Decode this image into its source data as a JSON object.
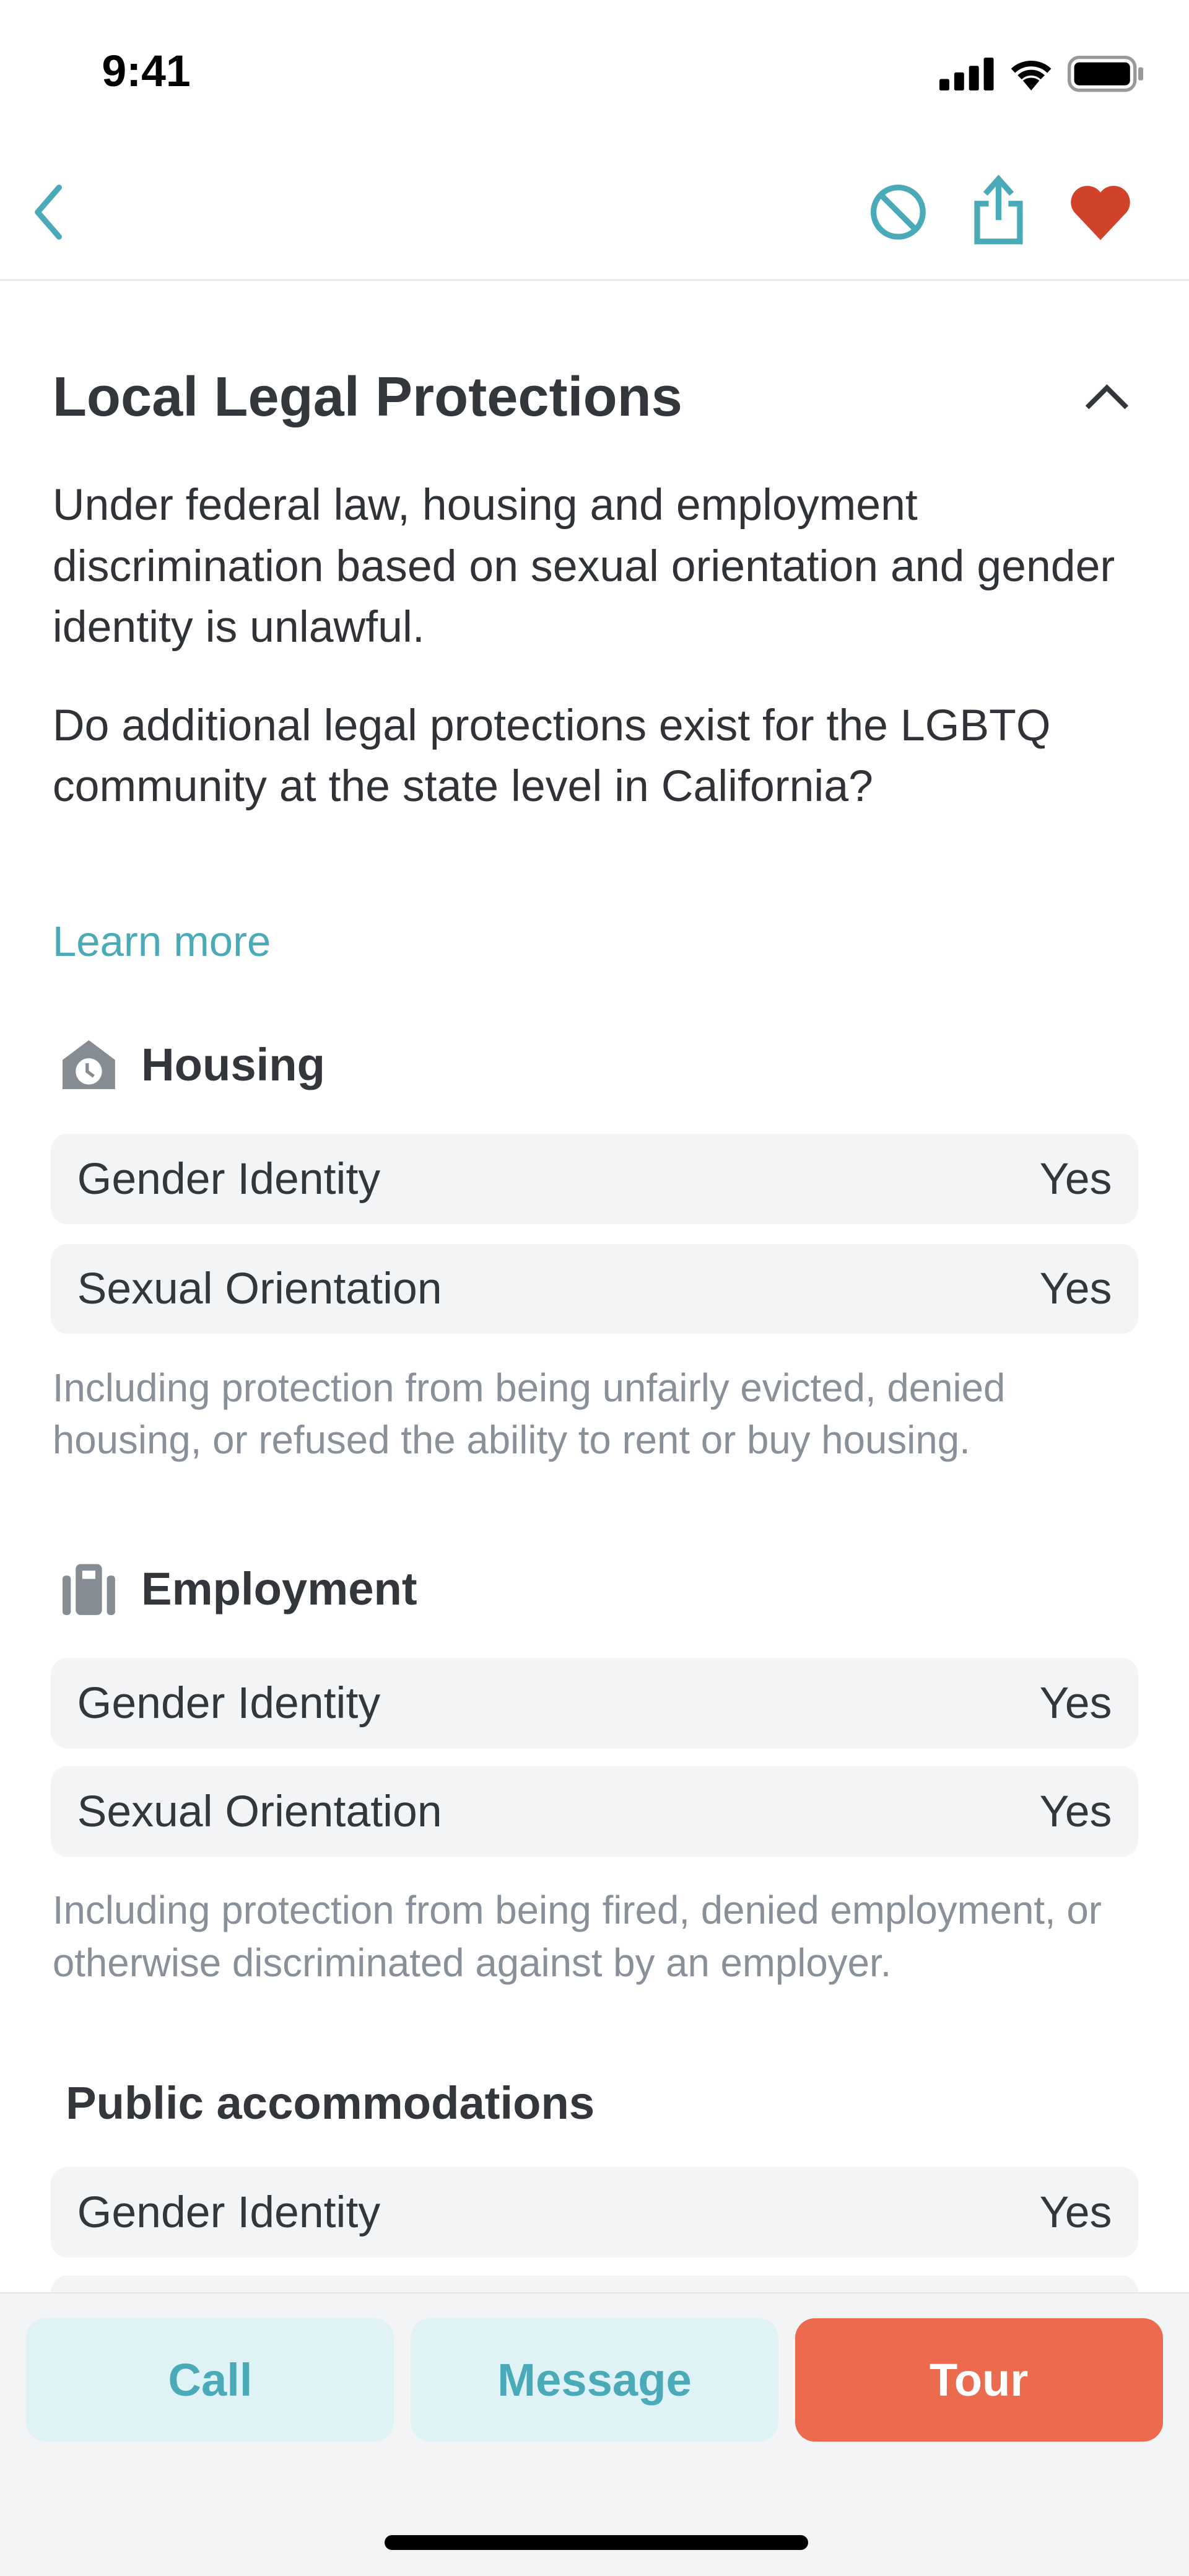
{
  "status_bar": {
    "time": "9:41"
  },
  "nav": {
    "icons": [
      "back-chevron-icon",
      "block-icon",
      "share-icon",
      "heart-icon"
    ],
    "accent_color": "#4aaab8",
    "favorite_color": "#d0432a"
  },
  "section": {
    "title": "Local Legal Protections",
    "intro": "Under federal law, housing and employment discrimination based on sexual orientation and gender identity is unlawful.",
    "question": "Do additional legal protections exist for the LGBTQ community at the state level in California?",
    "learn_more": "Learn more",
    "categories": [
      {
        "title": "Housing",
        "icon": "house-icon",
        "rows": [
          {
            "label": "Gender Identity",
            "value": "Yes"
          },
          {
            "label": "Sexual Orientation",
            "value": "Yes"
          }
        ],
        "note": "Including protection from being unfairly evicted, denied housing, or refused the ability to rent or buy housing."
      },
      {
        "title": "Employment",
        "icon": "briefcase-icon",
        "rows": [
          {
            "label": "Gender Identity",
            "value": "Yes"
          },
          {
            "label": "Sexual Orientation",
            "value": "Yes"
          }
        ],
        "note": "Including protection from being fired, denied employment, or otherwise discriminated against by an employer."
      },
      {
        "title": "Public accommodations",
        "rows": [
          {
            "label": "Gender Identity",
            "value": "Yes"
          }
        ]
      }
    ]
  },
  "actions": {
    "call": "Call",
    "message": "Message",
    "tour": "Tour",
    "tour_color": "#ec6a4d"
  }
}
